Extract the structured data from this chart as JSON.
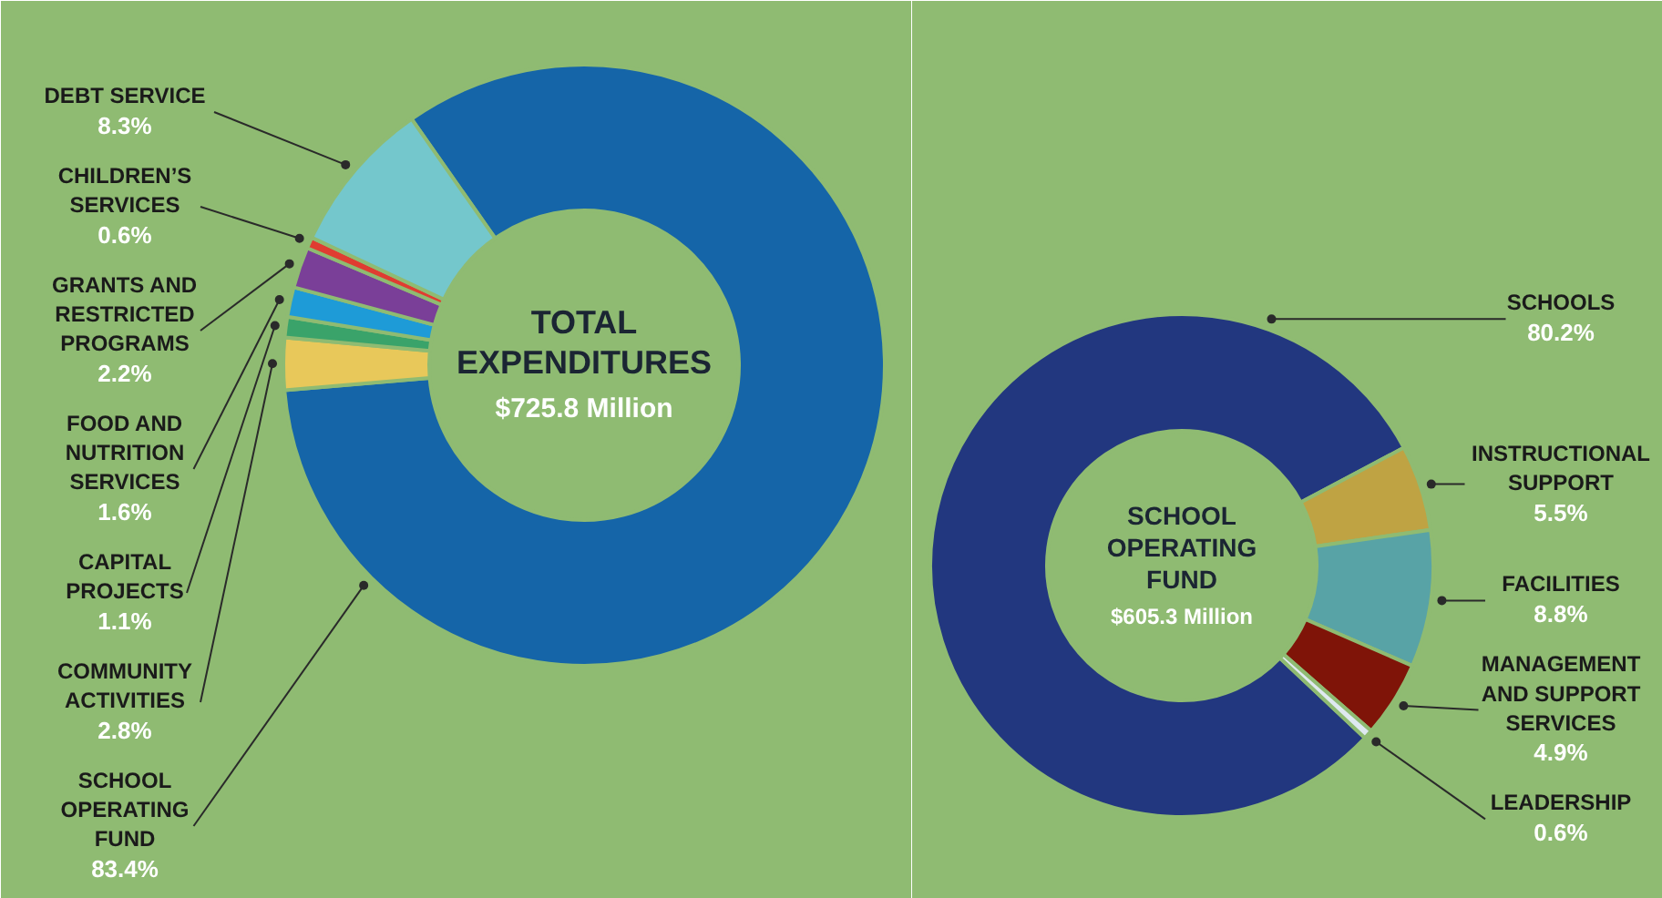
{
  "chart_data": [
    {
      "type": "donut",
      "title": "TOTAL EXPENDITURES",
      "subtitle": "$725.8 Million",
      "categories": [
        "SCHOOL OPERATING FUND",
        "COMMUNITY ACTIVITIES",
        "CAPITAL PROJECTS",
        "FOOD AND NUTRITION SERVICES",
        "GRANTS AND RESTRICTED PROGRAMS",
        "CHILDREN’S SERVICES",
        "DEBT SERVICE"
      ],
      "values": [
        83.4,
        2.8,
        1.1,
        1.6,
        2.2,
        0.6,
        8.3
      ],
      "colors": [
        "#1565a8",
        "#e8c85a",
        "#3aa36a",
        "#1e9bd7",
        "#7a3f98",
        "#e03c31",
        "#74c7cc"
      ],
      "value_labels": [
        "83.4%",
        "2.8%",
        "1.1%",
        "1.6%",
        "2.2%",
        "0.6%",
        "8.3%"
      ]
    },
    {
      "type": "donut",
      "title": "SCHOOL OPERATING FUND",
      "subtitle": "$605.3 Million",
      "categories": [
        "SCHOOLS",
        "INSTRUCTIONAL SUPPORT",
        "FACILITIES",
        "MANAGEMENT AND SUPPORT SERVICES",
        "LEADERSHIP"
      ],
      "values": [
        80.2,
        5.5,
        8.8,
        4.9,
        0.6
      ],
      "colors": [
        "#22377f",
        "#bfa343",
        "#58a3a6",
        "#7f1408",
        "#dfe9f0"
      ],
      "value_labels": [
        "80.2%",
        "5.5%",
        "8.8%",
        "4.9%",
        "0.6%"
      ]
    }
  ]
}
